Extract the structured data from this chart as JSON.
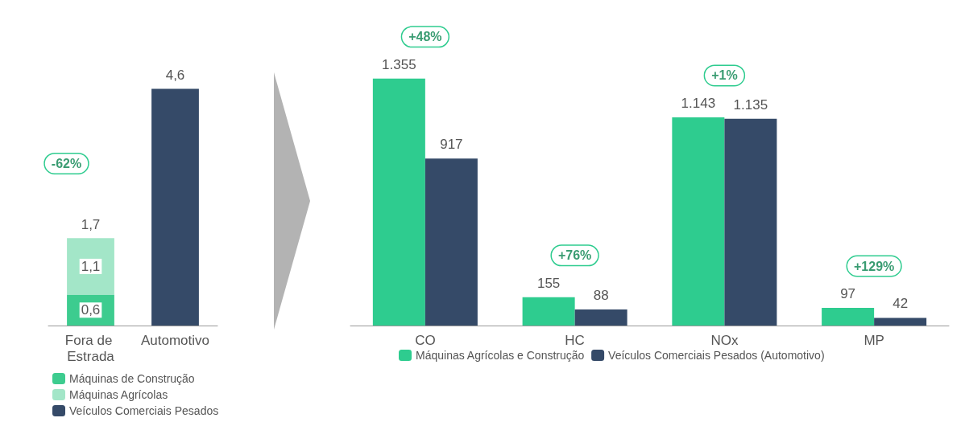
{
  "chart_data": [
    {
      "type": "bar",
      "stacked": true,
      "categories": [
        "Fora de Estrada",
        "Automotivo"
      ],
      "series": [
        {
          "name": "Máquinas de Construção",
          "color": "#3dcc8f",
          "values": [
            0.6,
            null
          ],
          "value_labels": [
            "0,6",
            null
          ]
        },
        {
          "name": "Máquinas Agrícolas",
          "color": "#a3e6c8",
          "values": [
            1.1,
            null
          ],
          "value_labels": [
            "1,1",
            null
          ]
        },
        {
          "name": "Veículos Comerciais Pesados",
          "color": "#354a68",
          "values": [
            null,
            4.6
          ],
          "value_labels": [
            null,
            "4,6"
          ]
        }
      ],
      "totals": [
        "1,7",
        null
      ],
      "annotations": [
        "-62%"
      ],
      "legend": "bottom"
    },
    {
      "type": "bar",
      "categories": [
        "CO",
        "HC",
        "NOx",
        "MP"
      ],
      "series": [
        {
          "name": "Máquinas Agrícolas e Construção",
          "color": "#2ecc8f",
          "values": [
            1355,
            155,
            1143,
            97
          ],
          "value_labels": [
            "1.355",
            "155",
            "1.143",
            "97"
          ]
        },
        {
          "name": "Veículos Comerciais Pesados (Automotivo)",
          "color": "#354a68",
          "values": [
            917,
            88,
            1135,
            42
          ],
          "value_labels": [
            "917",
            "88",
            "1.135",
            "42"
          ]
        }
      ],
      "annotations": [
        "+48%",
        "+76%",
        "+1%",
        "+129%"
      ],
      "legend": "bottom"
    }
  ]
}
